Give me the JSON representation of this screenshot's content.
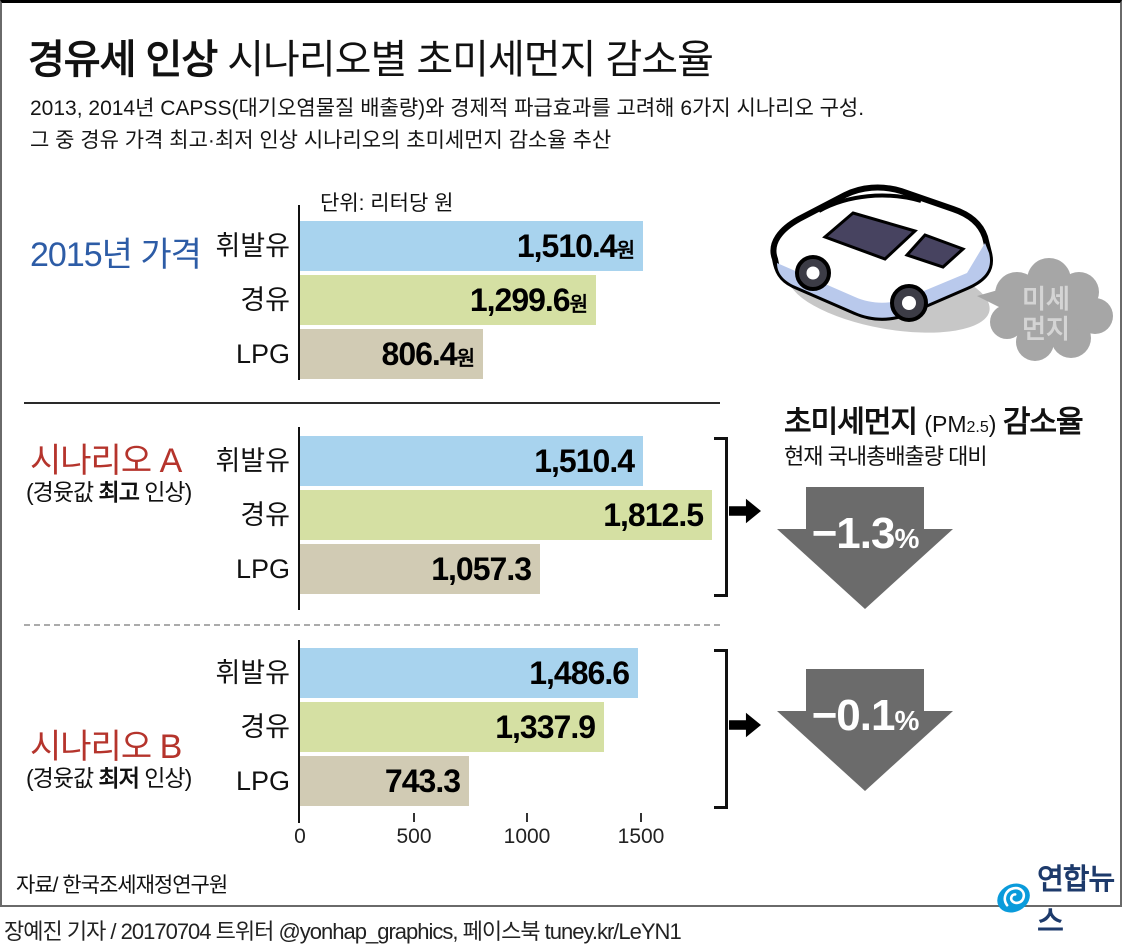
{
  "header": {
    "title_bold": "경유세 인상",
    "title_rest": " 시나리오별 초미세먼지 감소율",
    "subtitle_line1": "2013, 2014년 CAPSS(대기오염물질 배출량)와 경제적 파급효과를 고려해 6가지 시나리오 구성.",
    "subtitle_line2": "그 중 경유 가격 최고·최저 인상 시나리오의 초미세먼지 감소율 추산"
  },
  "chart_data": [
    {
      "type": "bar",
      "orientation": "horizontal",
      "group": "2015년 가격",
      "unit_note": "단위: 리터당 원",
      "categories": [
        "휘발유",
        "경유",
        "LPG"
      ],
      "values": [
        1510.4,
        1299.6,
        806.4
      ],
      "value_labels": [
        "1,510.4",
        "1,299.6",
        "806.4"
      ],
      "value_suffix": "원",
      "bar_colors": [
        "#a8d3ee",
        "#d5e0a3",
        "#d1cbb4"
      ],
      "xlim": [
        0,
        1900
      ],
      "grid": false
    },
    {
      "type": "bar",
      "orientation": "horizontal",
      "group": "시나리오 A",
      "note_prefix": "(경윳값 ",
      "note_bold": "최고",
      "note_suffix": " 인상)",
      "categories": [
        "휘발유",
        "경유",
        "LPG"
      ],
      "values": [
        1510.4,
        1812.5,
        1057.3
      ],
      "value_labels": [
        "1,510.4",
        "1,812.5",
        "1,057.3"
      ],
      "result_value": "−1.3",
      "result_unit": "%",
      "xlim": [
        0,
        1900
      ],
      "grid": false
    },
    {
      "type": "bar",
      "orientation": "horizontal",
      "group": "시나리오 B",
      "note_prefix": "(경윳값 ",
      "note_bold": "최저",
      "note_suffix": " 인상)",
      "categories": [
        "휘발유",
        "경유",
        "LPG"
      ],
      "values": [
        1486.6,
        1337.9,
        743.3
      ],
      "value_labels": [
        "1,486.6",
        "1,337.9",
        "743.3"
      ],
      "result_value": "−0.1",
      "result_unit": "%",
      "xlim": [
        0,
        1900
      ],
      "grid": false
    }
  ],
  "axis": {
    "ticks": [
      0,
      500,
      1000,
      1500
    ],
    "tick_labels": [
      "0",
      "500",
      "1000",
      "1500"
    ]
  },
  "pm_panel": {
    "title_main1": "초미세먼지 ",
    "title_pm_open": "(PM",
    "title_pm_num": "2.5",
    "title_pm_close": ") ",
    "title_main2": "감소율",
    "subtitle": "현재 국내총배출량 대비"
  },
  "exhaust_cloud": {
    "line1": "미세",
    "line2": "먼지"
  },
  "footer": {
    "source": "자료/ 한국조세재정연구원",
    "byline": "장예진 기자 / 20170704 트위터 @yonhap_graphics, 페이스북 tuney.kr/LeYN1",
    "logo_text": "연합뉴스"
  },
  "colors": {
    "gasoline_bar": "#a8d3ee",
    "diesel_bar": "#d5e0a3",
    "lpg_bar": "#d1cbb4",
    "scenario_label": "#b5342c",
    "year_label": "#2d5ca6",
    "result_arrow": "#6b6b6b",
    "cloud_gray": "#a6a6a6",
    "logo_blue": "#0a9bdb",
    "logo_navy": "#1d3a6b"
  }
}
